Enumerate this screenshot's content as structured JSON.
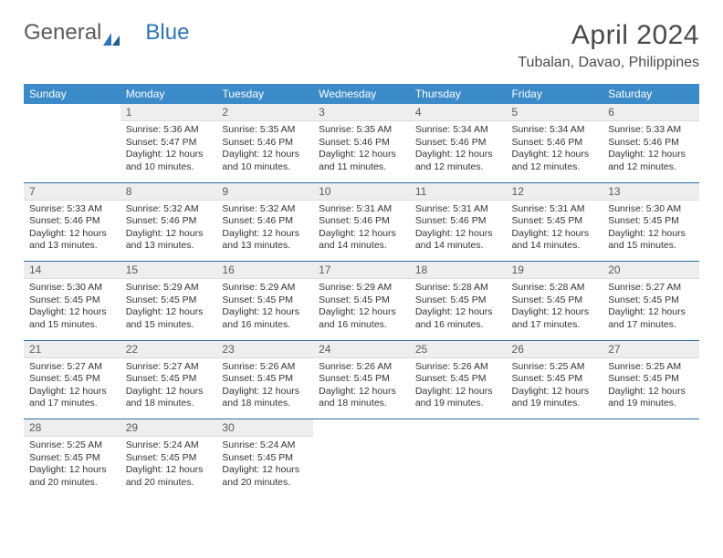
{
  "brand": {
    "part1": "General",
    "part2": "Blue"
  },
  "title": "April 2024",
  "location": "Tubalan, Davao, Philippines",
  "colors": {
    "header_bg": "#3b8bc9",
    "header_text": "#ffffff",
    "daynum_bg": "#eeeeee",
    "week_border": "#2e6da4",
    "logo_gray": "#5a5a5a",
    "logo_blue": "#2e75b6"
  },
  "day_names": [
    "Sunday",
    "Monday",
    "Tuesday",
    "Wednesday",
    "Thursday",
    "Friday",
    "Saturday"
  ],
  "weeks": [
    [
      null,
      {
        "n": "1",
        "sr": "Sunrise: 5:36 AM",
        "ss": "Sunset: 5:47 PM",
        "dl": "Daylight: 12 hours and 10 minutes."
      },
      {
        "n": "2",
        "sr": "Sunrise: 5:35 AM",
        "ss": "Sunset: 5:46 PM",
        "dl": "Daylight: 12 hours and 10 minutes."
      },
      {
        "n": "3",
        "sr": "Sunrise: 5:35 AM",
        "ss": "Sunset: 5:46 PM",
        "dl": "Daylight: 12 hours and 11 minutes."
      },
      {
        "n": "4",
        "sr": "Sunrise: 5:34 AM",
        "ss": "Sunset: 5:46 PM",
        "dl": "Daylight: 12 hours and 12 minutes."
      },
      {
        "n": "5",
        "sr": "Sunrise: 5:34 AM",
        "ss": "Sunset: 5:46 PM",
        "dl": "Daylight: 12 hours and 12 minutes."
      },
      {
        "n": "6",
        "sr": "Sunrise: 5:33 AM",
        "ss": "Sunset: 5:46 PM",
        "dl": "Daylight: 12 hours and 12 minutes."
      }
    ],
    [
      {
        "n": "7",
        "sr": "Sunrise: 5:33 AM",
        "ss": "Sunset: 5:46 PM",
        "dl": "Daylight: 12 hours and 13 minutes."
      },
      {
        "n": "8",
        "sr": "Sunrise: 5:32 AM",
        "ss": "Sunset: 5:46 PM",
        "dl": "Daylight: 12 hours and 13 minutes."
      },
      {
        "n": "9",
        "sr": "Sunrise: 5:32 AM",
        "ss": "Sunset: 5:46 PM",
        "dl": "Daylight: 12 hours and 13 minutes."
      },
      {
        "n": "10",
        "sr": "Sunrise: 5:31 AM",
        "ss": "Sunset: 5:46 PM",
        "dl": "Daylight: 12 hours and 14 minutes."
      },
      {
        "n": "11",
        "sr": "Sunrise: 5:31 AM",
        "ss": "Sunset: 5:46 PM",
        "dl": "Daylight: 12 hours and 14 minutes."
      },
      {
        "n": "12",
        "sr": "Sunrise: 5:31 AM",
        "ss": "Sunset: 5:45 PM",
        "dl": "Daylight: 12 hours and 14 minutes."
      },
      {
        "n": "13",
        "sr": "Sunrise: 5:30 AM",
        "ss": "Sunset: 5:45 PM",
        "dl": "Daylight: 12 hours and 15 minutes."
      }
    ],
    [
      {
        "n": "14",
        "sr": "Sunrise: 5:30 AM",
        "ss": "Sunset: 5:45 PM",
        "dl": "Daylight: 12 hours and 15 minutes."
      },
      {
        "n": "15",
        "sr": "Sunrise: 5:29 AM",
        "ss": "Sunset: 5:45 PM",
        "dl": "Daylight: 12 hours and 15 minutes."
      },
      {
        "n": "16",
        "sr": "Sunrise: 5:29 AM",
        "ss": "Sunset: 5:45 PM",
        "dl": "Daylight: 12 hours and 16 minutes."
      },
      {
        "n": "17",
        "sr": "Sunrise: 5:29 AM",
        "ss": "Sunset: 5:45 PM",
        "dl": "Daylight: 12 hours and 16 minutes."
      },
      {
        "n": "18",
        "sr": "Sunrise: 5:28 AM",
        "ss": "Sunset: 5:45 PM",
        "dl": "Daylight: 12 hours and 16 minutes."
      },
      {
        "n": "19",
        "sr": "Sunrise: 5:28 AM",
        "ss": "Sunset: 5:45 PM",
        "dl": "Daylight: 12 hours and 17 minutes."
      },
      {
        "n": "20",
        "sr": "Sunrise: 5:27 AM",
        "ss": "Sunset: 5:45 PM",
        "dl": "Daylight: 12 hours and 17 minutes."
      }
    ],
    [
      {
        "n": "21",
        "sr": "Sunrise: 5:27 AM",
        "ss": "Sunset: 5:45 PM",
        "dl": "Daylight: 12 hours and 17 minutes."
      },
      {
        "n": "22",
        "sr": "Sunrise: 5:27 AM",
        "ss": "Sunset: 5:45 PM",
        "dl": "Daylight: 12 hours and 18 minutes."
      },
      {
        "n": "23",
        "sr": "Sunrise: 5:26 AM",
        "ss": "Sunset: 5:45 PM",
        "dl": "Daylight: 12 hours and 18 minutes."
      },
      {
        "n": "24",
        "sr": "Sunrise: 5:26 AM",
        "ss": "Sunset: 5:45 PM",
        "dl": "Daylight: 12 hours and 18 minutes."
      },
      {
        "n": "25",
        "sr": "Sunrise: 5:26 AM",
        "ss": "Sunset: 5:45 PM",
        "dl": "Daylight: 12 hours and 19 minutes."
      },
      {
        "n": "26",
        "sr": "Sunrise: 5:25 AM",
        "ss": "Sunset: 5:45 PM",
        "dl": "Daylight: 12 hours and 19 minutes."
      },
      {
        "n": "27",
        "sr": "Sunrise: 5:25 AM",
        "ss": "Sunset: 5:45 PM",
        "dl": "Daylight: 12 hours and 19 minutes."
      }
    ],
    [
      {
        "n": "28",
        "sr": "Sunrise: 5:25 AM",
        "ss": "Sunset: 5:45 PM",
        "dl": "Daylight: 12 hours and 20 minutes."
      },
      {
        "n": "29",
        "sr": "Sunrise: 5:24 AM",
        "ss": "Sunset: 5:45 PM",
        "dl": "Daylight: 12 hours and 20 minutes."
      },
      {
        "n": "30",
        "sr": "Sunrise: 5:24 AM",
        "ss": "Sunset: 5:45 PM",
        "dl": "Daylight: 12 hours and 20 minutes."
      },
      null,
      null,
      null,
      null
    ]
  ]
}
